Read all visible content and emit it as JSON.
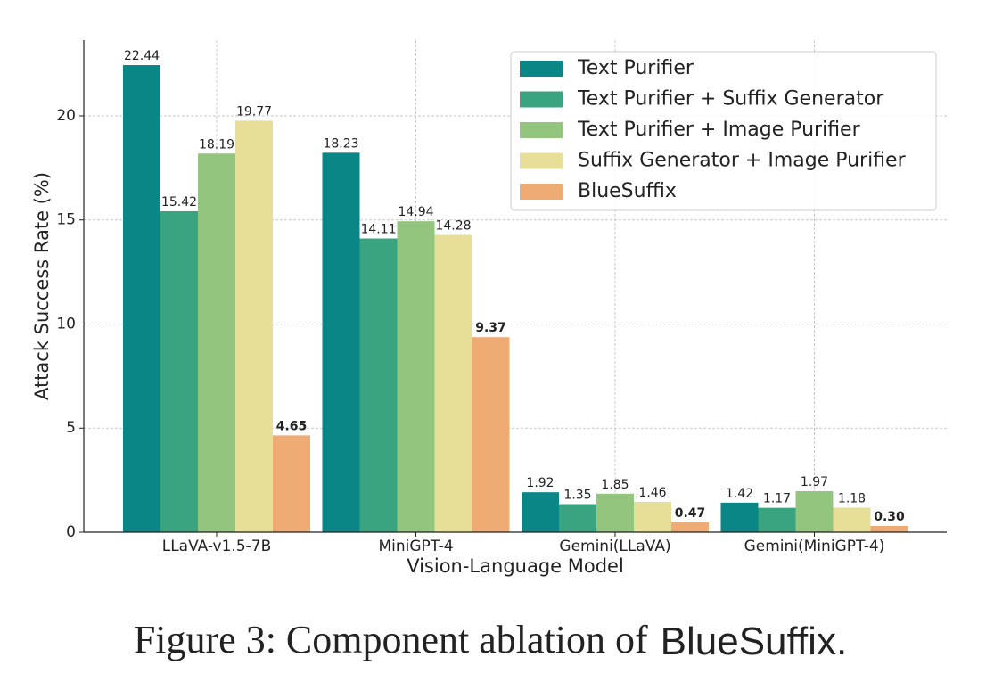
{
  "chart_data": {
    "type": "bar",
    "caption": [
      "Figure 3: Component ablation of",
      "BlueSuffix."
    ],
    "x_label": "Vision-Language Model",
    "y_label": "Attack Success Rate (%)",
    "categories": [
      "LLaVA-v1.5-7B",
      "MiniGPT-4",
      "Gemini(LLaVA)",
      "Gemini(MiniGPT-4)"
    ],
    "series": [
      {
        "name": "Text Purifier",
        "color": "#0b8686",
        "values": [
          22.44,
          18.23,
          1.92,
          1.42
        ]
      },
      {
        "name": "Text Purifier + Suffix Generator",
        "color": "#39a47f",
        "values": [
          15.42,
          14.11,
          1.35,
          1.17
        ]
      },
      {
        "name": "Text Purifier + Image Purifier",
        "color": "#94c57e",
        "values": [
          18.19,
          14.94,
          1.85,
          1.97
        ]
      },
      {
        "name": "Suffix Generator + Image Purifier",
        "color": "#e7de98",
        "values": [
          19.77,
          14.28,
          1.46,
          1.18
        ]
      },
      {
        "name": "BlueSuffix",
        "color": "#eeab74",
        "values": [
          4.65,
          9.37,
          0.47,
          0.3
        ],
        "value_labels": [
          "4.65",
          "9.37",
          "0.47",
          "0.30"
        ],
        "bold_labels": true
      }
    ],
    "ylim": [
      0,
      23.64
    ],
    "yticks": [
      0,
      5,
      10,
      15,
      20
    ],
    "grid": true,
    "legend": "upper right"
  }
}
